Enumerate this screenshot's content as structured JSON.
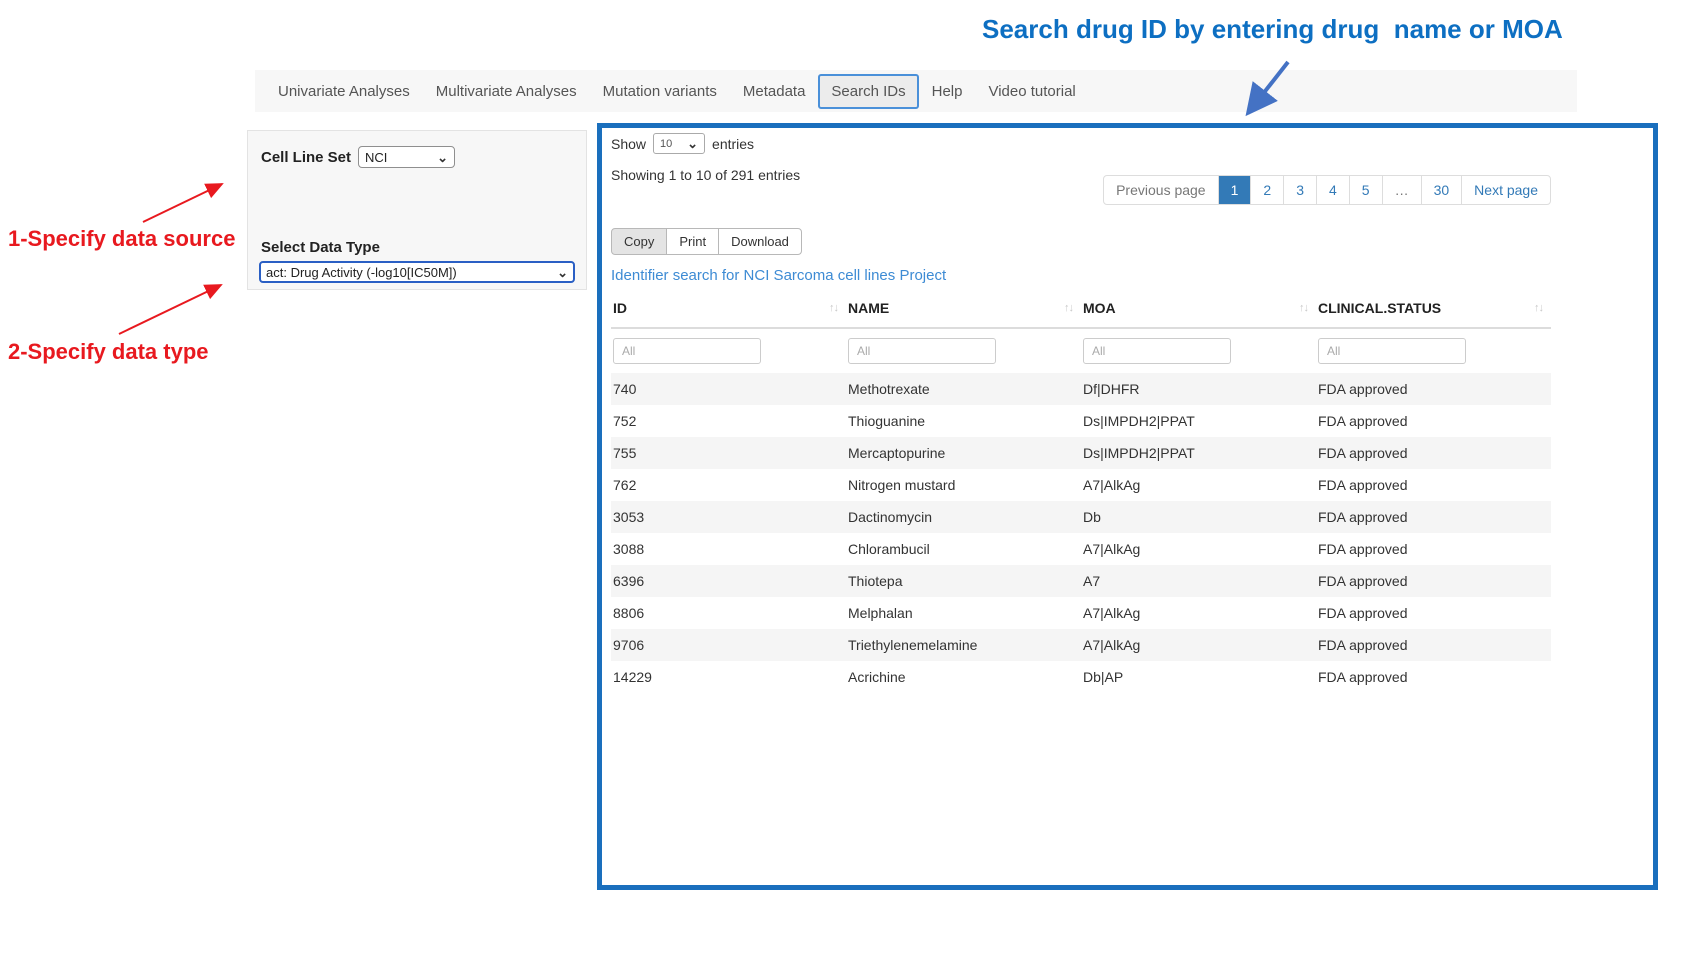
{
  "annotations": {
    "top_note": "Search drug ID by entering drug  name or MOA",
    "note1": "1-Specify data source",
    "note2": "2-Specify data type"
  },
  "colors": {
    "annotation_blue": "#0d6fc2",
    "annotation_red": "#e8191f",
    "arrow_blue": "#4472c4",
    "panel_border_blue": "#1a6fbd",
    "active_page_bg": "#337ab7",
    "link_blue": "#3d8bd4"
  },
  "icons": {
    "select_chevron": "⌄",
    "sort_arrows": "↑↓"
  },
  "navbar": {
    "items": [
      {
        "label": "Univariate Analyses",
        "active": false
      },
      {
        "label": "Multivariate Analyses",
        "active": false
      },
      {
        "label": "Mutation variants",
        "active": false
      },
      {
        "label": "Metadata",
        "active": false
      },
      {
        "label": "Search IDs",
        "active": true
      },
      {
        "label": "Help",
        "active": false
      },
      {
        "label": "Video tutorial",
        "active": false
      }
    ]
  },
  "sidebar": {
    "cell_line_set_label": "Cell Line Set",
    "cell_line_set_value": "NCI",
    "data_type_label": "Select Data Type",
    "data_type_value": "act: Drug Activity (-log10[IC50M])"
  },
  "main": {
    "show_label": "Show",
    "show_value": "10",
    "entries_label": "entries",
    "showing_text": "Showing 1 to 10 of 291 entries",
    "pagination": {
      "previous": "Previous page",
      "pages": [
        "1",
        "2",
        "3",
        "4",
        "5",
        "…",
        "30"
      ],
      "active_page": "1",
      "next": "Next page"
    },
    "buttons": [
      "Copy",
      "Print",
      "Download"
    ],
    "link": "Identifier search for NCI Sarcoma cell lines Project",
    "table": {
      "columns": [
        "ID",
        "NAME",
        "MOA",
        "CLINICAL.STATUS"
      ],
      "filter_placeholder": "All",
      "rows": [
        [
          "740",
          "Methotrexate",
          "Df|DHFR",
          "FDA approved"
        ],
        [
          "752",
          "Thioguanine",
          "Ds|IMPDH2|PPAT",
          "FDA approved"
        ],
        [
          "755",
          "Mercaptopurine",
          "Ds|IMPDH2|PPAT",
          "FDA approved"
        ],
        [
          "762",
          "Nitrogen mustard",
          "A7|AlkAg",
          "FDA approved"
        ],
        [
          "3053",
          "Dactinomycin",
          "Db",
          "FDA approved"
        ],
        [
          "3088",
          "Chlorambucil",
          "A7|AlkAg",
          "FDA approved"
        ],
        [
          "6396",
          "Thiotepa",
          "A7",
          "FDA approved"
        ],
        [
          "8806",
          "Melphalan",
          "A7|AlkAg",
          "FDA approved"
        ],
        [
          "9706",
          "Triethylenemelamine",
          "A7|AlkAg",
          "FDA approved"
        ],
        [
          "14229",
          "Acrichine",
          "Db|AP",
          "FDA approved"
        ]
      ]
    }
  }
}
